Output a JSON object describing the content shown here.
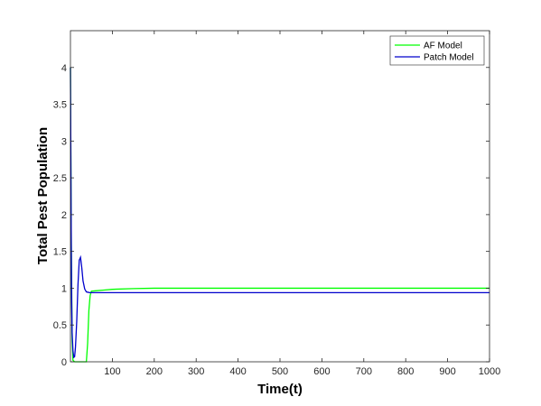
{
  "chart_data": {
    "type": "line",
    "xlabel": "Time(t)",
    "ylabel": "Total Pest Population",
    "xlim": [
      0,
      1000
    ],
    "ylim": [
      0,
      4.5
    ],
    "xticks": [
      100,
      200,
      300,
      400,
      500,
      600,
      700,
      800,
      900,
      1000
    ],
    "yticks": [
      0,
      0.5,
      1,
      1.5,
      2,
      2.5,
      3,
      3.5,
      4
    ],
    "ytick_labels": [
      "0",
      "0.5",
      "1",
      "1.5",
      "2",
      "2.5",
      "3",
      "3.5",
      "4"
    ],
    "grid": false,
    "legend_position": "top-right",
    "series": [
      {
        "name": "AF Model",
        "color": "#00ff00",
        "x": [
          0,
          2,
          4,
          6,
          10,
          20,
          30,
          38,
          41,
          44,
          47,
          50,
          60,
          80,
          100,
          150,
          200,
          300,
          500,
          1000
        ],
        "y": [
          4.0,
          1.6,
          0.3,
          0.02,
          0.0,
          0.0,
          0.0,
          0.0,
          0.25,
          0.7,
          0.9,
          0.96,
          0.965,
          0.975,
          0.985,
          0.995,
          1.0,
          1.0,
          1.0,
          1.0
        ]
      },
      {
        "name": "Patch Model",
        "color": "#0000cc",
        "x": [
          0,
          1,
          2,
          3,
          4,
          6,
          8,
          10,
          12,
          15,
          18,
          21,
          24,
          27,
          30,
          34,
          38,
          42,
          46,
          50,
          60,
          80,
          100,
          200,
          500,
          1000
        ],
        "y": [
          4.0,
          2.8,
          1.6,
          0.8,
          0.4,
          0.15,
          0.06,
          0.07,
          0.2,
          0.55,
          1.05,
          1.38,
          1.42,
          1.28,
          1.1,
          0.99,
          0.95,
          0.945,
          0.94,
          0.94,
          0.94,
          0.94,
          0.94,
          0.94,
          0.94,
          0.94
        ]
      }
    ]
  }
}
